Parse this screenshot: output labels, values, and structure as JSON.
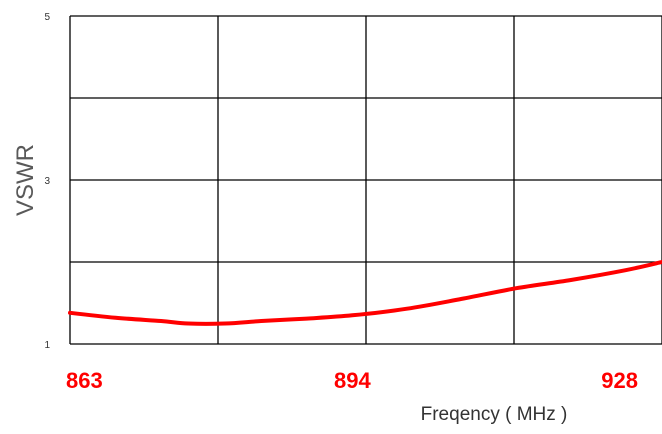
{
  "chart_data": {
    "type": "line",
    "title": "",
    "xlabel": "Freqency ( MHz )",
    "ylabel": "VSWR",
    "x_tick_labels": [
      "863",
      "894",
      "928"
    ],
    "y_tick_labels": [
      "1",
      "3",
      "5"
    ],
    "xlim": [
      863,
      928
    ],
    "ylim": [
      1,
      5
    ],
    "grid": true,
    "legend": "none",
    "series": [
      {
        "color": "#ff0000",
        "x": [
          863,
          868,
          873,
          876,
          880,
          884,
          889,
          894,
          900,
          906,
          912,
          918,
          924,
          928
        ],
        "y": [
          1.38,
          1.32,
          1.28,
          1.25,
          1.25,
          1.28,
          1.31,
          1.35,
          1.43,
          1.55,
          1.68,
          1.78,
          1.9,
          2.0
        ]
      }
    ]
  }
}
